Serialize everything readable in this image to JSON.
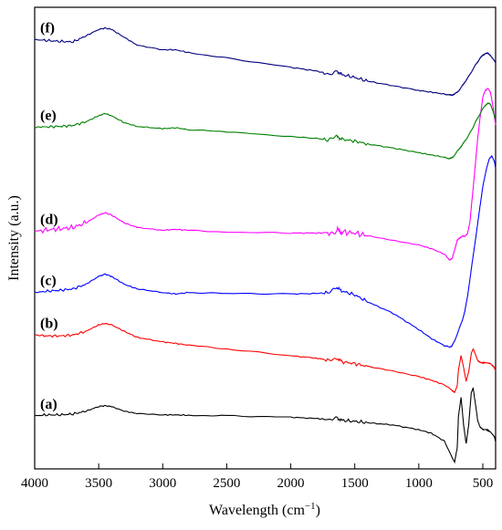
{
  "chart_data": {
    "type": "line",
    "title": "",
    "xlabel": "Wavelength (cm⁻¹)",
    "ylabel": "Intensity (a.u.)",
    "xlim": [
      4000,
      400
    ],
    "x_reversed": true,
    "xticks": [
      "4000",
      "3500",
      "3000",
      "2500",
      "2000",
      "1500",
      "1000",
      "500"
    ],
    "yticks_shown": false,
    "grid": false,
    "legend": "inline labels at left of each curve",
    "series": [
      {
        "name": "(a)",
        "color": "#000000",
        "baseline": 0.115,
        "x": [
          4000,
          3900,
          3800,
          3700,
          3600,
          3500,
          3450,
          3400,
          3300,
          3200,
          3000,
          2900,
          2800,
          2500,
          2000,
          1800,
          1700,
          1640,
          1600,
          1500,
          1400,
          1200,
          1000,
          900,
          800,
          740,
          720,
          700,
          690,
          670,
          650,
          630,
          610,
          590,
          575,
          560,
          540,
          520,
          500,
          470,
          440,
          410,
          400
        ],
        "y": [
          0.0,
          0.002,
          0.002,
          0.004,
          0.01,
          0.02,
          0.022,
          0.02,
          0.01,
          0.005,
          0.002,
          0.002,
          0.001,
          0.0,
          -0.003,
          -0.006,
          -0.008,
          -0.004,
          -0.01,
          -0.012,
          -0.015,
          -0.02,
          -0.03,
          -0.038,
          -0.055,
          -0.09,
          -0.1,
          -0.07,
          0.0,
          0.04,
          -0.02,
          -0.06,
          -0.02,
          0.05,
          0.06,
          0.03,
          -0.01,
          -0.025,
          -0.03,
          -0.03,
          -0.035,
          -0.045,
          -0.055
        ]
      },
      {
        "name": "(b)",
        "color": "#ff0000",
        "baseline": 0.29,
        "x": [
          4000,
          3900,
          3800,
          3700,
          3600,
          3500,
          3450,
          3400,
          3300,
          3200,
          3000,
          2900,
          2800,
          2500,
          2000,
          1800,
          1700,
          1640,
          1600,
          1500,
          1400,
          1200,
          1000,
          900,
          800,
          740,
          720,
          700,
          690,
          670,
          650,
          630,
          610,
          590,
          575,
          560,
          540,
          520,
          500,
          470,
          440,
          410,
          400
        ],
        "y": [
          0.0,
          -0.002,
          -0.002,
          0.0,
          0.008,
          0.022,
          0.025,
          0.022,
          0.008,
          -0.005,
          -0.015,
          -0.018,
          -0.022,
          -0.03,
          -0.045,
          -0.05,
          -0.055,
          -0.05,
          -0.058,
          -0.062,
          -0.068,
          -0.078,
          -0.09,
          -0.098,
          -0.108,
          -0.12,
          -0.125,
          -0.11,
          -0.075,
          -0.045,
          -0.07,
          -0.1,
          -0.08,
          -0.04,
          -0.03,
          -0.04,
          -0.055,
          -0.06,
          -0.06,
          -0.06,
          -0.062,
          -0.07,
          -0.078
        ]
      },
      {
        "name": "(c)",
        "color": "#0000ff",
        "baseline": 0.382,
        "x": [
          4000,
          3900,
          3800,
          3700,
          3600,
          3500,
          3450,
          3400,
          3300,
          3200,
          3000,
          2900,
          2800,
          2500,
          2000,
          1800,
          1700,
          1640,
          1600,
          1500,
          1400,
          1200,
          1000,
          900,
          800,
          760,
          740,
          720,
          700,
          680,
          660,
          640,
          620,
          600,
          580,
          560,
          540,
          520,
          500,
          470,
          450,
          430,
          410,
          400
        ],
        "y": [
          0.0,
          0.003,
          0.005,
          0.008,
          0.018,
          0.035,
          0.04,
          0.035,
          0.018,
          0.008,
          0.0,
          -0.003,
          0.0,
          -0.002,
          -0.003,
          -0.002,
          0.0,
          0.01,
          0.003,
          -0.005,
          -0.02,
          -0.045,
          -0.08,
          -0.1,
          -0.115,
          -0.118,
          -0.115,
          -0.105,
          -0.09,
          -0.075,
          -0.06,
          -0.04,
          -0.01,
          0.03,
          0.07,
          0.11,
          0.15,
          0.19,
          0.23,
          0.27,
          0.29,
          0.295,
          0.285,
          0.27
        ]
      },
      {
        "name": "(d)",
        "color": "#ff00ff",
        "baseline": 0.515,
        "x": [
          4000,
          3900,
          3800,
          3700,
          3600,
          3500,
          3450,
          3400,
          3300,
          3200,
          3000,
          2900,
          2800,
          2500,
          2000,
          1800,
          1700,
          1640,
          1600,
          1500,
          1400,
          1200,
          1000,
          900,
          800,
          760,
          740,
          720,
          700,
          680,
          660,
          640,
          620,
          600,
          580,
          560,
          540,
          520,
          500,
          480,
          460,
          440,
          420,
          400
        ],
        "y": [
          0.0,
          0.003,
          0.005,
          0.008,
          0.018,
          0.035,
          0.04,
          0.035,
          0.018,
          0.008,
          0.002,
          0.004,
          0.002,
          -0.002,
          -0.004,
          -0.004,
          -0.004,
          0.003,
          -0.002,
          -0.004,
          -0.01,
          -0.02,
          -0.03,
          -0.038,
          -0.05,
          -0.062,
          -0.06,
          -0.04,
          -0.02,
          -0.015,
          -0.01,
          -0.012,
          -0.005,
          0.02,
          0.08,
          0.14,
          0.2,
          0.25,
          0.29,
          0.305,
          0.31,
          0.3,
          0.27,
          0.23
        ]
      },
      {
        "name": "(e)",
        "color": "#008000",
        "baseline": 0.74,
        "x": [
          4000,
          3900,
          3800,
          3700,
          3600,
          3500,
          3450,
          3400,
          3300,
          3200,
          3000,
          2900,
          2800,
          2500,
          2000,
          1800,
          1700,
          1640,
          1600,
          1500,
          1400,
          1200,
          1000,
          900,
          800,
          760,
          740,
          720,
          700,
          680,
          660,
          640,
          620,
          600,
          580,
          560,
          540,
          520,
          500,
          480,
          460,
          440,
          420,
          400
        ],
        "y": [
          0.0,
          0.001,
          0.002,
          0.004,
          0.012,
          0.025,
          0.03,
          0.025,
          0.01,
          0.002,
          -0.003,
          -0.001,
          -0.005,
          -0.01,
          -0.02,
          -0.024,
          -0.028,
          -0.02,
          -0.026,
          -0.03,
          -0.036,
          -0.045,
          -0.055,
          -0.06,
          -0.065,
          -0.068,
          -0.066,
          -0.06,
          -0.052,
          -0.045,
          -0.038,
          -0.03,
          -0.022,
          -0.012,
          -0.002,
          0.01,
          0.02,
          0.03,
          0.04,
          0.048,
          0.052,
          0.05,
          0.035,
          0.015
        ]
      },
      {
        "name": "(f)",
        "color": "#000080",
        "baseline": 0.93,
        "x": [
          4000,
          3900,
          3800,
          3700,
          3600,
          3500,
          3450,
          3400,
          3300,
          3200,
          3000,
          2900,
          2800,
          2500,
          2000,
          1800,
          1700,
          1640,
          1600,
          1500,
          1400,
          1200,
          1000,
          900,
          800,
          760,
          740,
          720,
          700,
          680,
          660,
          640,
          620,
          600,
          580,
          560,
          540,
          520,
          500,
          480,
          460,
          440,
          420,
          400
        ],
        "y": [
          0.0,
          -0.002,
          -0.004,
          -0.005,
          0.008,
          0.022,
          0.025,
          0.022,
          0.005,
          -0.012,
          -0.022,
          -0.022,
          -0.028,
          -0.04,
          -0.06,
          -0.068,
          -0.075,
          -0.068,
          -0.076,
          -0.082,
          -0.09,
          -0.1,
          -0.11,
          -0.114,
          -0.118,
          -0.12,
          -0.12,
          -0.118,
          -0.114,
          -0.108,
          -0.1,
          -0.092,
          -0.084,
          -0.075,
          -0.066,
          -0.056,
          -0.048,
          -0.04,
          -0.034,
          -0.03,
          -0.03,
          -0.034,
          -0.042,
          -0.05
        ]
      }
    ]
  }
}
